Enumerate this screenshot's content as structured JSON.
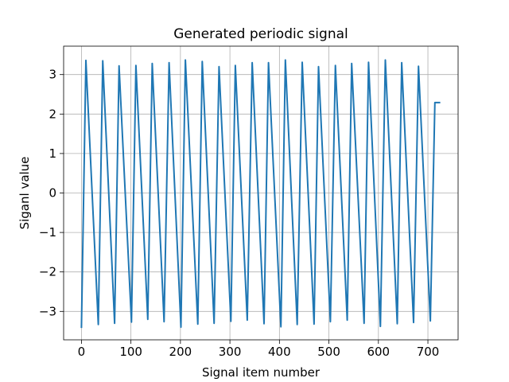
{
  "chart_data": {
    "type": "line",
    "title": "Generated periodic signal",
    "xlabel": "Signal item number",
    "ylabel": "Siganl value",
    "xlim": [
      -36,
      761
    ],
    "ylim": [
      -3.72,
      3.72
    ],
    "xticks": [
      0,
      100,
      200,
      300,
      400,
      500,
      600,
      700
    ],
    "xtick_labels": [
      "0",
      "100",
      "200",
      "300",
      "400",
      "500",
      "600",
      "700"
    ],
    "yticks": [
      -3,
      -2,
      -1,
      0,
      1,
      2,
      3
    ],
    "ytick_labels": [
      "−3",
      "−2",
      "−1",
      "0",
      "1",
      "2",
      "3"
    ],
    "grid": true,
    "series": [
      {
        "color": "#1f77b4",
        "x": [
          0,
          9,
          34,
          43,
          67,
          76,
          101,
          110,
          134,
          143,
          167,
          177,
          201,
          210,
          235,
          244,
          268,
          278,
          302,
          311,
          335,
          345,
          369,
          378,
          403,
          412,
          436,
          446,
          470,
          479,
          503,
          513,
          537,
          546,
          571,
          580,
          604,
          614,
          638,
          647,
          671,
          681,
          705,
          714,
          725
        ],
        "y": [
          -3.42,
          3.36,
          -3.33,
          3.35,
          -3.3,
          3.22,
          -3.27,
          3.23,
          -3.2,
          3.28,
          -3.26,
          3.3,
          -3.4,
          3.37,
          -3.32,
          3.33,
          -3.3,
          3.2,
          -3.25,
          3.23,
          -3.22,
          3.3,
          -3.31,
          3.3,
          -3.39,
          3.37,
          -3.33,
          3.31,
          -3.32,
          3.2,
          -3.26,
          3.23,
          -3.22,
          3.28,
          -3.3,
          3.31,
          -3.38,
          3.37,
          -3.31,
          3.3,
          -3.28,
          3.21,
          -3.24,
          2.29,
          2.29
        ]
      }
    ]
  }
}
